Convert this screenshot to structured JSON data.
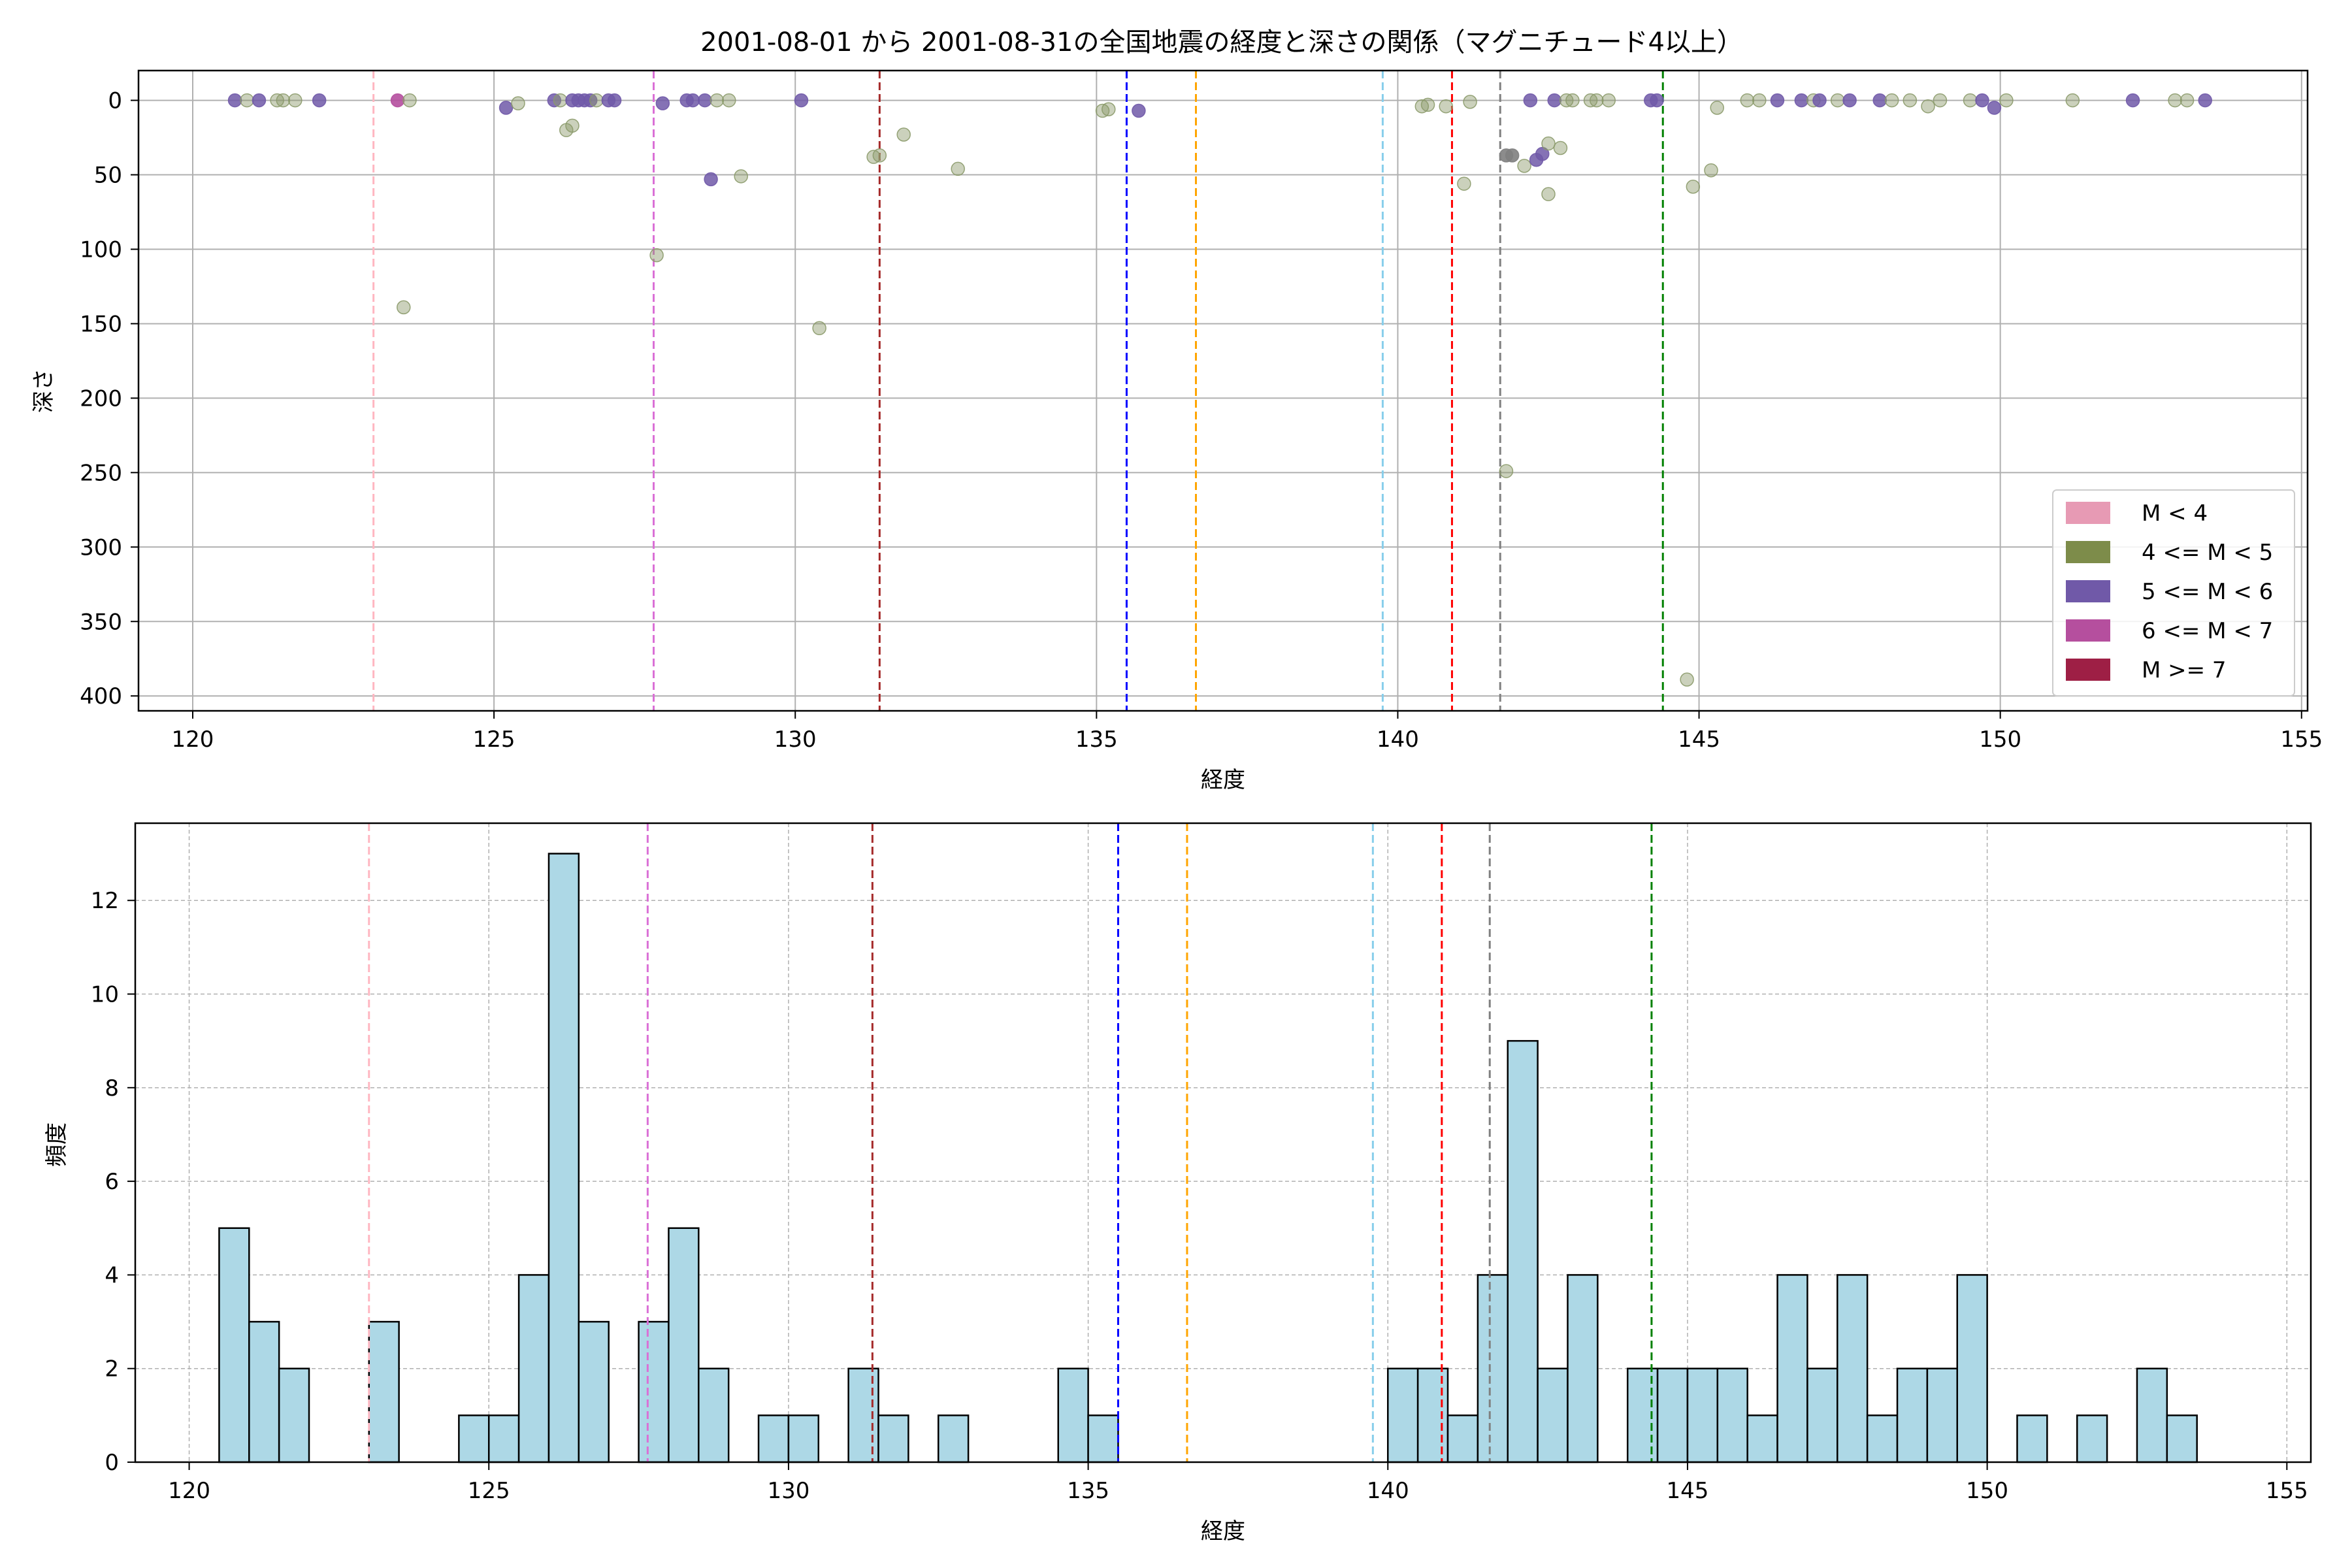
{
  "chart_data": [
    {
      "type": "scatter",
      "title": "2001-08-01 から 2001-08-31の全国地震の経度と深さの関係（マグニチュード4以上）",
      "xlabel": "経度",
      "ylabel": "深さ",
      "xlim": [
        119.1,
        155.1
      ],
      "ylim": [
        410,
        -20
      ],
      "y_inverted": true,
      "xticks": [
        120,
        125,
        130,
        135,
        140,
        145,
        150,
        155
      ],
      "yticks": [
        0,
        50,
        100,
        150,
        200,
        250,
        300,
        350,
        400
      ],
      "grid": true,
      "legend_position": "lower-right",
      "legend": [
        {
          "label": "M < 4",
          "color": "#e79ab4"
        },
        {
          "label": "4 <= M < 5",
          "color": "#7d8c4a"
        },
        {
          "label": "5 <= M < 6",
          "color": "#7059a8"
        },
        {
          "label": "6 <= M < 7",
          "color": "#b54f9e"
        },
        {
          "label": "M >= 7",
          "color": "#9e1f45"
        }
      ],
      "vlines": [
        {
          "x": 123.0,
          "color": "#ffb6c1"
        },
        {
          "x": 127.65,
          "color": "#da70d6"
        },
        {
          "x": 131.4,
          "color": "#a52a2a"
        },
        {
          "x": 135.5,
          "color": "#0000ff"
        },
        {
          "x": 136.65,
          "color": "#ffa500"
        },
        {
          "x": 139.75,
          "color": "#87ceeb"
        },
        {
          "x": 140.9,
          "color": "#ff0000"
        },
        {
          "x": 141.7,
          "color": "#808080"
        },
        {
          "x": 144.4,
          "color": "#008000"
        }
      ],
      "points": [
        {
          "x": 120.7,
          "y": 0,
          "m": "5"
        },
        {
          "x": 120.9,
          "y": 0,
          "m": "4"
        },
        {
          "x": 121.1,
          "y": 0,
          "m": "5"
        },
        {
          "x": 121.4,
          "y": 0,
          "m": "4"
        },
        {
          "x": 121.5,
          "y": 0,
          "m": "4"
        },
        {
          "x": 121.7,
          "y": 0,
          "m": "4"
        },
        {
          "x": 122.1,
          "y": 0,
          "m": "5"
        },
        {
          "x": 123.4,
          "y": 0,
          "m": "6"
        },
        {
          "x": 123.6,
          "y": 0,
          "m": "4"
        },
        {
          "x": 123.5,
          "y": 139,
          "m": "4"
        },
        {
          "x": 125.2,
          "y": 5,
          "m": "5"
        },
        {
          "x": 125.4,
          "y": 2,
          "m": "4"
        },
        {
          "x": 126.0,
          "y": 0,
          "m": "5"
        },
        {
          "x": 126.1,
          "y": 0,
          "m": "4"
        },
        {
          "x": 126.2,
          "y": 20,
          "m": "4"
        },
        {
          "x": 126.3,
          "y": 17,
          "m": "4"
        },
        {
          "x": 126.3,
          "y": 0,
          "m": "5"
        },
        {
          "x": 126.4,
          "y": 0,
          "m": "5"
        },
        {
          "x": 126.5,
          "y": 0,
          "m": "5"
        },
        {
          "x": 126.6,
          "y": 0,
          "m": "5"
        },
        {
          "x": 126.7,
          "y": 0,
          "m": "4"
        },
        {
          "x": 126.9,
          "y": 0,
          "m": "5"
        },
        {
          "x": 127.0,
          "y": 0,
          "m": "5"
        },
        {
          "x": 127.7,
          "y": 104,
          "m": "4"
        },
        {
          "x": 127.8,
          "y": 2,
          "m": "5"
        },
        {
          "x": 128.2,
          "y": 0,
          "m": "5"
        },
        {
          "x": 128.3,
          "y": 0,
          "m": "5"
        },
        {
          "x": 128.5,
          "y": 0,
          "m": "5"
        },
        {
          "x": 128.7,
          "y": 0,
          "m": "4"
        },
        {
          "x": 128.6,
          "y": 53,
          "m": "5"
        },
        {
          "x": 128.9,
          "y": 0,
          "m": "4"
        },
        {
          "x": 129.1,
          "y": 51,
          "m": "4"
        },
        {
          "x": 130.1,
          "y": 0,
          "m": "5"
        },
        {
          "x": 130.4,
          "y": 153,
          "m": "4"
        },
        {
          "x": 131.3,
          "y": 38,
          "m": "4"
        },
        {
          "x": 131.4,
          "y": 37,
          "m": "4"
        },
        {
          "x": 131.8,
          "y": 23,
          "m": "4"
        },
        {
          "x": 132.7,
          "y": 46,
          "m": "4"
        },
        {
          "x": 135.1,
          "y": 7,
          "m": "4"
        },
        {
          "x": 135.2,
          "y": 6,
          "m": "4"
        },
        {
          "x": 135.7,
          "y": 7,
          "m": "5"
        },
        {
          "x": 140.4,
          "y": 4,
          "m": "4"
        },
        {
          "x": 140.5,
          "y": 3,
          "m": "4"
        },
        {
          "x": 140.8,
          "y": 4,
          "m": "4"
        },
        {
          "x": 141.1,
          "y": 56,
          "m": "4"
        },
        {
          "x": 141.2,
          "y": 1,
          "m": "4"
        },
        {
          "x": 141.8,
          "y": 37,
          "m": "3"
        },
        {
          "x": 141.9,
          "y": 37,
          "m": "3"
        },
        {
          "x": 141.8,
          "y": 249,
          "m": "4"
        },
        {
          "x": 142.1,
          "y": 44,
          "m": "4"
        },
        {
          "x": 142.2,
          "y": 0,
          "m": "5"
        },
        {
          "x": 142.3,
          "y": 40,
          "m": "5"
        },
        {
          "x": 142.4,
          "y": 36,
          "m": "5"
        },
        {
          "x": 142.5,
          "y": 63,
          "m": "4"
        },
        {
          "x": 142.5,
          "y": 29,
          "m": "4"
        },
        {
          "x": 142.6,
          "y": 0,
          "m": "5"
        },
        {
          "x": 142.7,
          "y": 32,
          "m": "4"
        },
        {
          "x": 142.8,
          "y": 0,
          "m": "4"
        },
        {
          "x": 142.9,
          "y": 0,
          "m": "4"
        },
        {
          "x": 143.2,
          "y": 0,
          "m": "4"
        },
        {
          "x": 143.3,
          "y": 0,
          "m": "4"
        },
        {
          "x": 143.5,
          "y": 0,
          "m": "4"
        },
        {
          "x": 144.2,
          "y": 0,
          "m": "5"
        },
        {
          "x": 144.3,
          "y": 0,
          "m": "5"
        },
        {
          "x": 144.8,
          "y": 389,
          "m": "4"
        },
        {
          "x": 144.9,
          "y": 58,
          "m": "4"
        },
        {
          "x": 145.2,
          "y": 47,
          "m": "4"
        },
        {
          "x": 145.3,
          "y": 5,
          "m": "4"
        },
        {
          "x": 145.8,
          "y": 0,
          "m": "4"
        },
        {
          "x": 146.0,
          "y": 0,
          "m": "4"
        },
        {
          "x": 146.3,
          "y": 0,
          "m": "5"
        },
        {
          "x": 146.7,
          "y": 0,
          "m": "5"
        },
        {
          "x": 146.9,
          "y": 0,
          "m": "4"
        },
        {
          "x": 147.0,
          "y": 0,
          "m": "5"
        },
        {
          "x": 147.3,
          "y": 0,
          "m": "4"
        },
        {
          "x": 147.5,
          "y": 0,
          "m": "5"
        },
        {
          "x": 148.0,
          "y": 0,
          "m": "5"
        },
        {
          "x": 148.2,
          "y": 0,
          "m": "4"
        },
        {
          "x": 148.5,
          "y": 0,
          "m": "4"
        },
        {
          "x": 148.8,
          "y": 4,
          "m": "4"
        },
        {
          "x": 149.0,
          "y": 0,
          "m": "4"
        },
        {
          "x": 149.5,
          "y": 0,
          "m": "4"
        },
        {
          "x": 149.7,
          "y": 0,
          "m": "5"
        },
        {
          "x": 149.9,
          "y": 5,
          "m": "5"
        },
        {
          "x": 150.1,
          "y": 0,
          "m": "4"
        },
        {
          "x": 151.2,
          "y": 0,
          "m": "4"
        },
        {
          "x": 152.2,
          "y": 0,
          "m": "5"
        },
        {
          "x": 152.9,
          "y": 0,
          "m": "4"
        },
        {
          "x": 153.1,
          "y": 0,
          "m": "4"
        },
        {
          "x": 153.4,
          "y": 0,
          "m": "5"
        }
      ]
    },
    {
      "type": "bar",
      "title": "",
      "xlabel": "経度",
      "ylabel": "頻度",
      "xlim": [
        119.1,
        155.4
      ],
      "ylim": [
        0,
        13.65
      ],
      "xticks": [
        120,
        125,
        130,
        135,
        140,
        145,
        150,
        155
      ],
      "yticks": [
        0,
        2,
        4,
        6,
        8,
        10,
        12
      ],
      "grid": true,
      "bar_color": "#add8e6",
      "bin_width": 0.5,
      "vlines": [
        {
          "x": 123.0,
          "color": "#ffb6c1"
        },
        {
          "x": 127.65,
          "color": "#da70d6"
        },
        {
          "x": 131.4,
          "color": "#a52a2a"
        },
        {
          "x": 135.5,
          "color": "#0000ff"
        },
        {
          "x": 136.65,
          "color": "#ffa500"
        },
        {
          "x": 139.75,
          "color": "#87ceeb"
        },
        {
          "x": 140.9,
          "color": "#ff0000"
        },
        {
          "x": 141.7,
          "color": "#808080"
        },
        {
          "x": 144.4,
          "color": "#008000"
        }
      ],
      "bins": [
        {
          "x": 120.75,
          "v": 5
        },
        {
          "x": 121.25,
          "v": 3
        },
        {
          "x": 121.75,
          "v": 2
        },
        {
          "x": 123.25,
          "v": 3
        },
        {
          "x": 124.75,
          "v": 1
        },
        {
          "x": 125.25,
          "v": 1
        },
        {
          "x": 125.75,
          "v": 4
        },
        {
          "x": 126.25,
          "v": 13
        },
        {
          "x": 126.75,
          "v": 3
        },
        {
          "x": 127.75,
          "v": 3
        },
        {
          "x": 128.25,
          "v": 5
        },
        {
          "x": 128.75,
          "v": 2
        },
        {
          "x": 129.75,
          "v": 1
        },
        {
          "x": 130.25,
          "v": 1
        },
        {
          "x": 131.25,
          "v": 2
        },
        {
          "x": 131.75,
          "v": 1
        },
        {
          "x": 132.75,
          "v": 1
        },
        {
          "x": 134.75,
          "v": 2
        },
        {
          "x": 135.25,
          "v": 1
        },
        {
          "x": 140.25,
          "v": 2
        },
        {
          "x": 140.75,
          "v": 2
        },
        {
          "x": 141.25,
          "v": 1
        },
        {
          "x": 141.75,
          "v": 4
        },
        {
          "x": 142.25,
          "v": 9
        },
        {
          "x": 142.75,
          "v": 2
        },
        {
          "x": 143.25,
          "v": 4
        },
        {
          "x": 144.25,
          "v": 2
        },
        {
          "x": 144.75,
          "v": 2
        },
        {
          "x": 145.25,
          "v": 2
        },
        {
          "x": 145.75,
          "v": 2
        },
        {
          "x": 146.25,
          "v": 1
        },
        {
          "x": 146.75,
          "v": 4
        },
        {
          "x": 147.25,
          "v": 2
        },
        {
          "x": 147.75,
          "v": 4
        },
        {
          "x": 148.25,
          "v": 1
        },
        {
          "x": 148.75,
          "v": 2
        },
        {
          "x": 149.25,
          "v": 2
        },
        {
          "x": 149.75,
          "v": 4
        },
        {
          "x": 150.75,
          "v": 1
        },
        {
          "x": 151.75,
          "v": 1
        },
        {
          "x": 152.75,
          "v": 2
        },
        {
          "x": 153.25,
          "v": 1
        }
      ]
    }
  ],
  "colors": {
    "m3": "#808080",
    "m4": "#8b9a6a",
    "m5": "#7059a8",
    "m6": "#b54f9e",
    "m7": "#9e1f45"
  }
}
